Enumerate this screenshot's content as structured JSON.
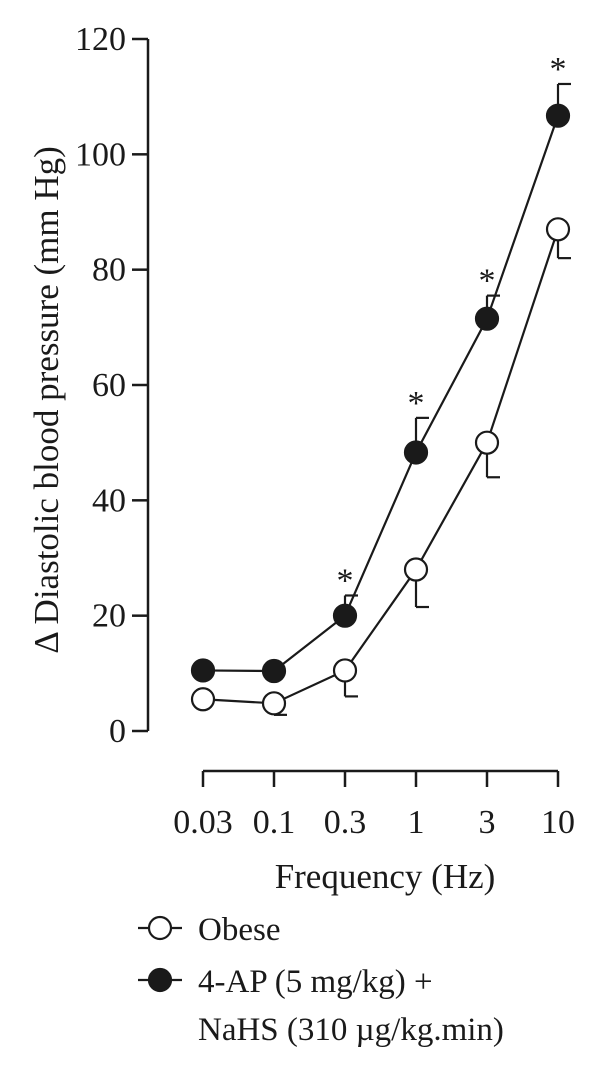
{
  "chart_data": {
    "type": "line",
    "title": "",
    "xlabel": "Frequency (Hz)",
    "ylabel": "Δ Diastolic blood pressure (mm Hg)",
    "x_scale": "log",
    "categories": [
      "0.03",
      "0.1",
      "0.3",
      "1",
      "3",
      "10"
    ],
    "ylim": [
      0,
      120
    ],
    "yticks": [
      "0",
      "20",
      "40",
      "60",
      "80",
      "100",
      "120"
    ],
    "grid": false,
    "legend_position": "bottom",
    "series": [
      {
        "name": "Obese",
        "marker": "open-circle",
        "color": "#1a1a1a",
        "values": [
          5.5,
          4.8,
          10.5,
          28,
          50,
          87
        ],
        "errors": [
          0,
          2,
          4.5,
          6.5,
          6,
          5
        ]
      },
      {
        "name": "4-AP (5 mg/kg) + NaHS (310 µg/kg.min)",
        "legend_lines": [
          "4-AP (5 mg/kg) +",
          "NaHS (310 µg/kg.min)"
        ],
        "marker": "filled-circle",
        "color": "#1a1a1a",
        "values": [
          10.5,
          10.4,
          20,
          48.3,
          71.5,
          106.7
        ],
        "errors": [
          0,
          0,
          3.5,
          6,
          4,
          5.5
        ],
        "significant": [
          false,
          false,
          true,
          true,
          true,
          true
        ]
      }
    ],
    "significance_marker": "*"
  }
}
